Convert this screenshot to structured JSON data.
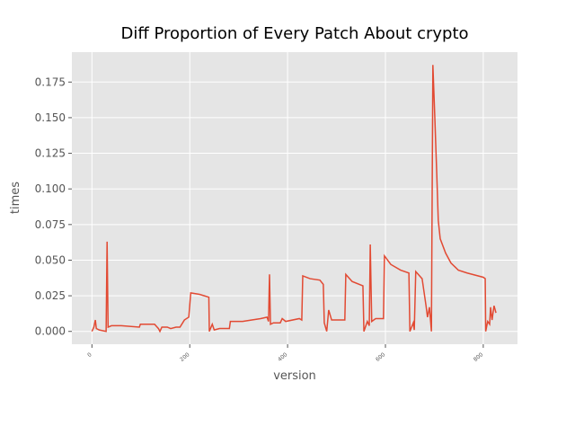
{
  "chart_data": {
    "type": "line",
    "title": "Diff Proportion of Every Patch About crypto",
    "xlabel": "version",
    "ylabel": "times",
    "x": [
      0,
      4,
      7,
      9,
      15,
      29,
      31,
      33,
      40,
      60,
      97,
      99,
      128,
      136,
      139,
      143,
      154,
      161,
      172,
      180,
      189,
      198,
      202,
      220,
      239,
      240,
      246,
      250,
      261,
      281,
      283,
      308,
      327,
      345,
      358,
      361,
      363,
      365,
      371,
      385,
      389,
      396,
      424,
      429,
      431,
      446,
      466,
      473,
      475,
      480,
      484,
      490,
      517,
      519,
      532,
      554,
      556,
      563,
      567,
      569,
      572,
      580,
      596,
      598,
      611,
      631,
      648,
      650,
      657,
      659,
      662,
      675,
      683,
      686,
      690,
      694,
      697,
      701,
      705,
      708,
      712,
      723,
      734,
      749,
      767,
      800,
      804,
      805,
      809,
      813,
      815,
      818,
      822,
      826
    ],
    "series": [
      {
        "name": "crypto",
        "color": "#E24A33",
        "values": [
          0.0,
          0.003,
          0.008,
          0.002,
          0.001,
          0.0,
          0.063,
          0.003,
          0.004,
          0.004,
          0.003,
          0.005,
          0.005,
          0.002,
          0.0,
          0.003,
          0.003,
          0.002,
          0.003,
          0.003,
          0.008,
          0.01,
          0.027,
          0.026,
          0.024,
          0.0,
          0.005,
          0.001,
          0.002,
          0.002,
          0.007,
          0.007,
          0.008,
          0.009,
          0.01,
          0.007,
          0.04,
          0.005,
          0.006,
          0.006,
          0.009,
          0.007,
          0.009,
          0.008,
          0.039,
          0.037,
          0.036,
          0.033,
          0.006,
          0.0,
          0.015,
          0.008,
          0.008,
          0.04,
          0.035,
          0.032,
          0.0,
          0.007,
          0.004,
          0.061,
          0.007,
          0.009,
          0.009,
          0.053,
          0.047,
          0.043,
          0.041,
          0.0,
          0.006,
          0.001,
          0.042,
          0.037,
          0.018,
          0.01,
          0.017,
          0.0,
          0.187,
          0.15,
          0.11,
          0.078,
          0.065,
          0.055,
          0.048,
          0.043,
          0.041,
          0.038,
          0.037,
          0.0,
          0.007,
          0.005,
          0.017,
          0.008,
          0.018,
          0.013
        ]
      }
    ],
    "xlim": [
      -41,
      870
    ],
    "ylim": [
      -0.009,
      0.196
    ],
    "xticks": [
      0,
      200,
      400,
      600,
      800
    ],
    "yticks": [
      {
        "value": 0,
        "label": "0.000"
      },
      {
        "value": 0.025,
        "label": "0.025"
      },
      {
        "value": 0.05,
        "label": "0.050"
      },
      {
        "value": 0.075,
        "label": "0.075"
      },
      {
        "value": 0.1,
        "label": "0.100"
      },
      {
        "value": 0.125,
        "label": "0.125"
      },
      {
        "value": 0.15,
        "label": "0.150"
      },
      {
        "value": 0.175,
        "label": "0.175"
      }
    ],
    "grid": true
  }
}
